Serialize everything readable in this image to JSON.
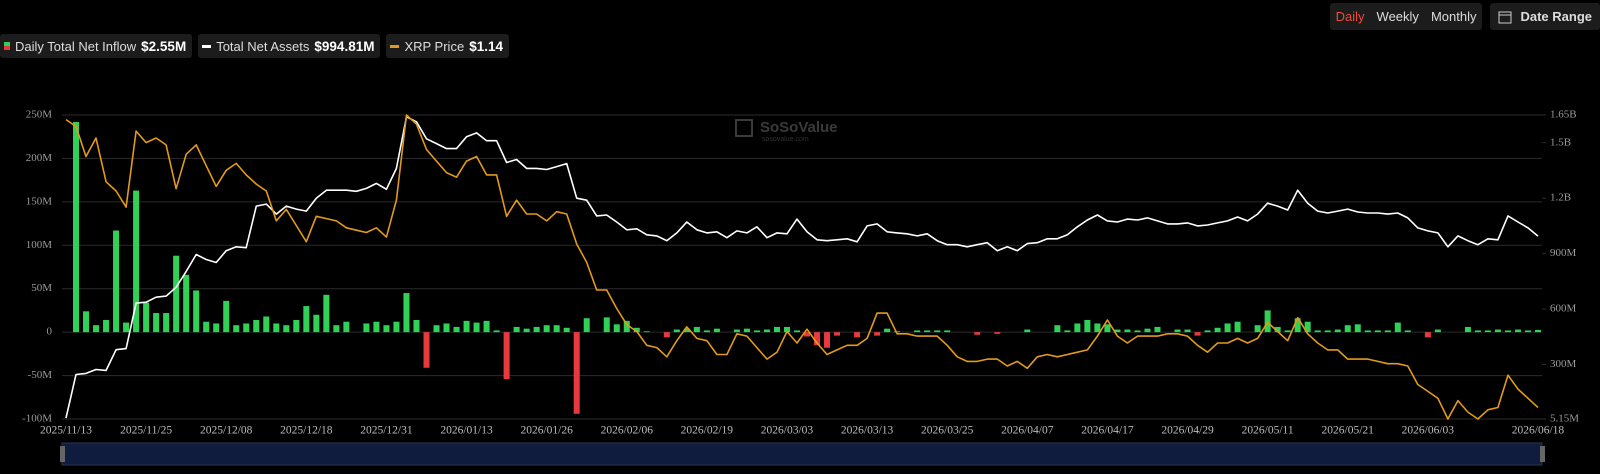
{
  "chart_data": {
    "type": "bar-line",
    "controls": {
      "periods": [
        "Daily",
        "Weekly",
        "Monthly"
      ],
      "active_index": 0,
      "date_range": "Date Range"
    },
    "watermark": {
      "brand": "SoSoValue",
      "site": "sosovalue.com"
    },
    "categories": [
      "2025/11/13",
      null,
      null,
      null,
      null,
      null,
      null,
      null,
      "2025/11/25",
      null,
      null,
      null,
      null,
      null,
      null,
      null,
      "2025/12/08",
      null,
      null,
      null,
      null,
      null,
      null,
      null,
      "2025/12/18",
      null,
      null,
      null,
      null,
      null,
      null,
      null,
      "2025/12/31",
      null,
      null,
      null,
      null,
      null,
      null,
      null,
      "2026/01/13",
      null,
      null,
      null,
      null,
      null,
      null,
      null,
      "2026/01/26",
      null,
      null,
      null,
      null,
      null,
      null,
      null,
      "2026/02/06",
      null,
      null,
      null,
      null,
      null,
      null,
      null,
      "2026/02/19",
      null,
      null,
      null,
      null,
      null,
      null,
      null,
      "2026/03/03",
      null,
      null,
      null,
      null,
      null,
      null,
      null,
      "2026/03/13",
      null,
      null,
      null,
      null,
      null,
      null,
      null,
      "2026/03/25",
      null,
      null,
      null,
      null,
      null,
      null,
      null,
      "2026/04/07",
      null,
      null,
      null,
      null,
      null,
      null,
      null,
      "2026/04/17",
      null,
      null,
      null,
      null,
      null,
      null,
      null,
      "2026/04/29",
      null,
      null,
      null,
      null,
      null,
      null,
      null,
      "2026/05/11",
      null,
      null,
      null,
      null,
      null,
      null,
      null,
      "2026/05/21",
      null,
      null,
      null,
      null,
      null,
      null,
      null,
      "2026/06/03",
      null,
      null,
      null,
      null,
      null,
      null,
      null,
      null,
      null,
      null,
      "2026/06/18"
    ],
    "ylim": [
      -100,
      250
    ],
    "yticks": [
      {
        "value": 250,
        "label": "250M"
      },
      {
        "value": 200,
        "label": "200M"
      },
      {
        "value": 150,
        "label": "150M"
      },
      {
        "value": 100,
        "label": "100M"
      },
      {
        "value": 50,
        "label": "50M"
      },
      0,
      {
        "value": -50,
        "label": "-50M"
      },
      {
        "value": -100,
        "label": "-100M"
      }
    ],
    "y2lim": [
      5.15,
      1650
    ],
    "y2ticks": [
      {
        "value": 1650,
        "label": "1.65B"
      },
      {
        "value": 1500,
        "label": "1.5B"
      },
      {
        "value": 1200,
        "label": "1.2B"
      },
      {
        "value": 900,
        "label": "900M"
      },
      {
        "value": 600,
        "label": "600M"
      },
      {
        "value": 300,
        "label": "300M"
      },
      {
        "value": 5.15,
        "label": "5.15M"
      }
    ],
    "y3lim": [
      1.09,
      2.41
    ],
    "grid": true,
    "series": [
      {
        "name": "Daily Total Net Inflow",
        "legend_value": "$2.55M",
        "kind": "bar",
        "axis": "y",
        "color": "#31d158",
        "negative_color": "#e8393c",
        "values": [
          0,
          242,
          24,
          8,
          14,
          117,
          11,
          163,
          34,
          22,
          22,
          88,
          66,
          48,
          12,
          10,
          36,
          8,
          10,
          14,
          18,
          10,
          8,
          14,
          30,
          20,
          43,
          8,
          12,
          0,
          10,
          12,
          8,
          12,
          45,
          14,
          -41,
          8,
          10,
          6,
          13,
          11,
          13,
          2,
          -54,
          6,
          4,
          6,
          8,
          8,
          5,
          -94,
          16,
          0,
          17,
          9,
          13,
          5,
          1,
          0,
          -6,
          3,
          4,
          6,
          2,
          4,
          0,
          3,
          4,
          2,
          3,
          6,
          6,
          2,
          -5,
          -15,
          -18,
          -4,
          0,
          -6,
          0,
          -4,
          4,
          1,
          0,
          2,
          2,
          2,
          2,
          0,
          0,
          -3,
          0,
          -2,
          0,
          0,
          3,
          0,
          0,
          8,
          2,
          10,
          14,
          10,
          9,
          3,
          3,
          2,
          4,
          6,
          0,
          3,
          3,
          -4,
          2,
          5,
          10,
          12,
          0,
          8,
          25,
          6,
          2,
          16,
          12,
          2,
          2,
          3,
          8,
          9,
          2,
          2,
          2,
          11,
          2,
          0,
          -6,
          3,
          0,
          0,
          6,
          2,
          2,
          3,
          2,
          3,
          2,
          2.55
        ]
      },
      {
        "name": "Total Net Assets",
        "legend_value": "$994.81M",
        "kind": "line",
        "axis": "y2",
        "color": "#ffffff",
        "values": [
          10,
          246,
          252,
          273,
          268,
          380,
          386,
          632,
          637,
          664,
          670,
          718,
          804,
          895,
          868,
          852,
          916,
          937,
          932,
          1157,
          1168,
          1114,
          1157,
          1141,
          1130,
          1200,
          1243,
          1243,
          1243,
          1237,
          1253,
          1280,
          1248,
          1361,
          1640,
          1613,
          1521,
          1495,
          1468,
          1468,
          1532,
          1553,
          1511,
          1511,
          1393,
          1409,
          1361,
          1361,
          1355,
          1371,
          1387,
          1200,
          1189,
          1104,
          1109,
          1071,
          1029,
          1034,
          1002,
          996,
          970,
          1012,
          1071,
          1029,
          1012,
          1018,
          986,
          1023,
          1012,
          1045,
          986,
          1012,
          1007,
          1087,
          1018,
          975,
          970,
          975,
          980,
          964,
          1050,
          1061,
          1018,
          1012,
          1007,
          996,
          1007,
          970,
          948,
          948,
          937,
          948,
          959,
          916,
          937,
          916,
          954,
          959,
          980,
          980,
          1002,
          1045,
          1082,
          1109,
          1077,
          1071,
          1087,
          1082,
          1093,
          1077,
          1061,
          1061,
          1066,
          1050,
          1055,
          1066,
          1077,
          1098,
          1077,
          1114,
          1173,
          1157,
          1136,
          1243,
          1173,
          1130,
          1120,
          1130,
          1141,
          1125,
          1120,
          1120,
          1114,
          1120,
          1093,
          1039,
          1023,
          1012,
          937,
          996,
          970,
          948,
          980,
          975,
          1104,
          1071,
          1039,
          994.81
        ]
      },
      {
        "name": "XRP Price",
        "legend_value": "$1.14",
        "kind": "line",
        "axis": "y3",
        "color": "#e39a1b",
        "values": [
          2.39,
          2.36,
          2.23,
          2.31,
          2.12,
          2.08,
          2.01,
          2.34,
          2.29,
          2.31,
          2.28,
          2.09,
          2.24,
          2.28,
          2.19,
          2.1,
          2.17,
          2.2,
          2.15,
          2.11,
          2.08,
          1.95,
          2.0,
          1.93,
          1.86,
          1.97,
          1.96,
          1.95,
          1.92,
          1.91,
          1.9,
          1.92,
          1.88,
          2.04,
          2.41,
          2.37,
          2.26,
          2.21,
          2.16,
          2.14,
          2.21,
          2.23,
          2.15,
          2.15,
          1.97,
          2.04,
          1.98,
          1.98,
          1.95,
          1.99,
          1.98,
          1.85,
          1.77,
          1.65,
          1.65,
          1.57,
          1.5,
          1.47,
          1.41,
          1.4,
          1.36,
          1.43,
          1.49,
          1.44,
          1.43,
          1.37,
          1.37,
          1.46,
          1.45,
          1.4,
          1.35,
          1.38,
          1.47,
          1.42,
          1.48,
          1.42,
          1.37,
          1.39,
          1.41,
          1.41,
          1.44,
          1.55,
          1.55,
          1.46,
          1.46,
          1.45,
          1.45,
          1.45,
          1.41,
          1.36,
          1.34,
          1.34,
          1.35,
          1.35,
          1.32,
          1.34,
          1.31,
          1.36,
          1.37,
          1.36,
          1.37,
          1.38,
          1.39,
          1.45,
          1.52,
          1.45,
          1.42,
          1.45,
          1.45,
          1.45,
          1.46,
          1.46,
          1.45,
          1.41,
          1.38,
          1.42,
          1.42,
          1.44,
          1.42,
          1.44,
          1.51,
          1.47,
          1.43,
          1.53,
          1.46,
          1.42,
          1.39,
          1.39,
          1.35,
          1.35,
          1.35,
          1.34,
          1.33,
          1.33,
          1.32,
          1.24,
          1.21,
          1.18,
          1.09,
          1.17,
          1.12,
          1.09,
          1.13,
          1.14,
          1.28,
          1.22,
          1.18,
          1.14
        ]
      }
    ]
  }
}
